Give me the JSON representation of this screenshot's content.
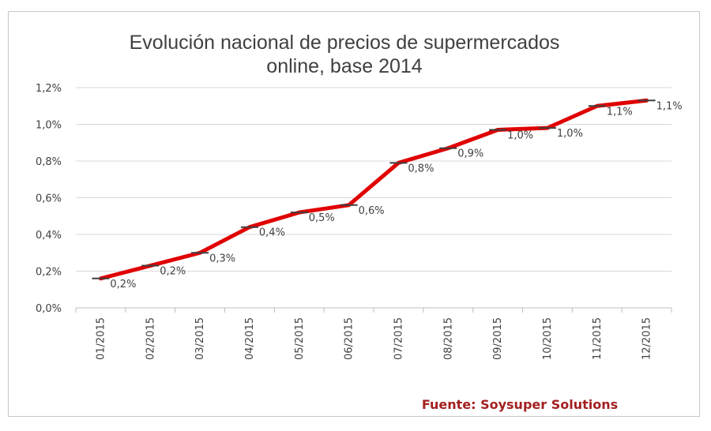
{
  "chart_data": {
    "type": "line",
    "title": [
      "Evolución nacional de precios de supermercados",
      "online, base 2014"
    ],
    "categories": [
      "01/2015",
      "02/2015",
      "03/2015",
      "04/2015",
      "05/2015",
      "06/2015",
      "07/2015",
      "08/2015",
      "09/2015",
      "10/2015",
      "11/2015",
      "12/2015"
    ],
    "series": [
      {
        "values": [
          0.16,
          0.23,
          0.3,
          0.44,
          0.52,
          0.56,
          0.79,
          0.87,
          0.97,
          0.98,
          1.1,
          1.13
        ],
        "labels": [
          "0,2%",
          "0,2%",
          "0,3%",
          "0,4%",
          "0,5%",
          "0,6%",
          "0,8%",
          "0,9%",
          "1,0%",
          "1,0%",
          "1,1%",
          "1,1%"
        ],
        "color": "#e00000"
      }
    ],
    "ylim": [
      0,
      1.2
    ],
    "yticks": [
      "0,0%",
      "0,2%",
      "0,4%",
      "0,6%",
      "0,8%",
      "1,0%",
      "1,2%"
    ],
    "grid": true,
    "legend": "none",
    "source": "Fuente: Soysuper Solutions",
    "colors": {
      "line": "#e00000",
      "marker": "#404040",
      "grid": "#d9d9d9",
      "source": "#a32020"
    }
  }
}
